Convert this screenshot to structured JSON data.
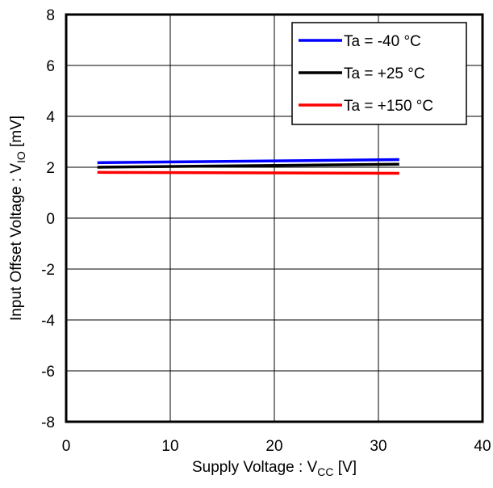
{
  "chart_data": {
    "type": "line",
    "title": "",
    "xlabel": {
      "main": "Supply Voltage : V",
      "sub": "CC",
      "unit": " [V]"
    },
    "ylabel": {
      "main": "Input Offset Voltage : V",
      "sub": "IO",
      "unit": " [mV]"
    },
    "xlim": [
      0,
      40
    ],
    "ylim": [
      -8,
      8
    ],
    "xticks": [
      0,
      10,
      20,
      30,
      40
    ],
    "yticks": [
      -8,
      -6,
      -4,
      -2,
      0,
      2,
      4,
      6,
      8
    ],
    "grid": true,
    "legend_position": "top-right",
    "series": [
      {
        "name": "Ta = -40 °C",
        "color": "#0000ff",
        "x": [
          3,
          32
        ],
        "y": [
          2.18,
          2.3
        ]
      },
      {
        "name": "Ta = +25 °C",
        "color": "#000000",
        "x": [
          3,
          32
        ],
        "y": [
          2.0,
          2.12
        ]
      },
      {
        "name": "Ta = +150 °C",
        "color": "#ff0000",
        "x": [
          3,
          32
        ],
        "y": [
          1.8,
          1.76
        ]
      }
    ]
  }
}
